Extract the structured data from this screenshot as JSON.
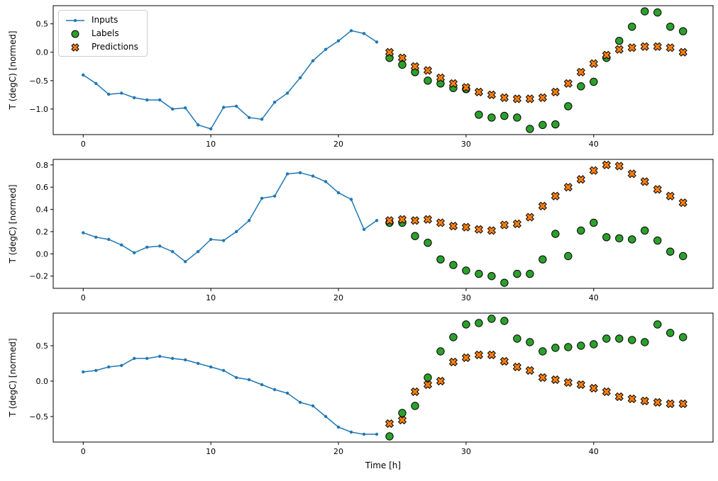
{
  "figure": {
    "xlabel": "Time [h]",
    "ylabel": "T (degC) [normed]",
    "background": "#ffffff",
    "legend": {
      "position": "upper-left",
      "items": [
        {
          "label": "Inputs",
          "marker": "line-dot",
          "color": "#1f77b4",
          "edge_color": "#1f77b4"
        },
        {
          "label": "Labels",
          "marker": "circle",
          "color": "#2ca02c",
          "edge_color": "#000000"
        },
        {
          "label": "Predictions",
          "marker": "x",
          "color": "#ff7f0e",
          "edge_color": "#000000"
        }
      ]
    }
  },
  "chart_data": [
    {
      "type": "line",
      "title": "",
      "xlabel": "",
      "ylabel": "T (degC) [normed]",
      "xlim": [
        -2.35,
        49.35
      ],
      "ylim": [
        -1.45,
        0.82
      ],
      "xticks": [
        0,
        10,
        20,
        30,
        40
      ],
      "yticks": [
        -1.0,
        -0.5,
        0.0,
        0.5
      ],
      "grid": false,
      "series": [
        {
          "name": "Inputs",
          "type": "line",
          "color": "#1f77b4",
          "x": [
            0,
            1,
            2,
            3,
            4,
            5,
            6,
            7,
            8,
            9,
            10,
            11,
            12,
            13,
            14,
            15,
            16,
            17,
            18,
            19,
            20,
            21,
            22,
            23
          ],
          "y": [
            -0.4,
            -0.55,
            -0.74,
            -0.72,
            -0.8,
            -0.84,
            -0.84,
            -1.0,
            -0.98,
            -1.28,
            -1.35,
            -0.97,
            -0.95,
            -1.15,
            -1.18,
            -0.88,
            -0.72,
            -0.45,
            -0.15,
            0.05,
            0.2,
            0.38,
            0.33,
            0.18
          ]
        },
        {
          "name": "Labels",
          "type": "scatter-circle",
          "color": "#2ca02c",
          "edge_color": "#000000",
          "x": [
            24,
            25,
            26,
            27,
            28,
            29,
            30,
            31,
            32,
            33,
            34,
            35,
            36,
            37,
            38,
            39,
            40,
            41,
            42,
            43,
            44,
            45,
            46,
            47
          ],
          "y": [
            -0.1,
            -0.22,
            -0.35,
            -0.5,
            -0.55,
            -0.63,
            -0.65,
            -1.1,
            -1.15,
            -1.12,
            -1.15,
            -1.35,
            -1.28,
            -1.27,
            -0.95,
            -0.6,
            -0.52,
            -0.1,
            0.2,
            0.45,
            0.72,
            0.7,
            0.45,
            0.37
          ]
        },
        {
          "name": "Predictions",
          "type": "scatter-x",
          "color": "#ff7f0e",
          "edge_color": "#000000",
          "x": [
            24,
            25,
            26,
            27,
            28,
            29,
            30,
            31,
            32,
            33,
            34,
            35,
            36,
            37,
            38,
            39,
            40,
            41,
            42,
            43,
            44,
            45,
            46,
            47
          ],
          "y": [
            0.0,
            -0.1,
            -0.25,
            -0.32,
            -0.45,
            -0.55,
            -0.62,
            -0.7,
            -0.75,
            -0.8,
            -0.82,
            -0.82,
            -0.8,
            -0.7,
            -0.55,
            -0.35,
            -0.2,
            -0.05,
            0.05,
            0.08,
            0.1,
            0.1,
            0.08,
            0.0
          ]
        }
      ]
    },
    {
      "type": "line",
      "title": "",
      "xlabel": "",
      "ylabel": "T (degC) [normed]",
      "xlim": [
        -2.35,
        49.35
      ],
      "ylim": [
        -0.31,
        0.85
      ],
      "xticks": [
        0,
        10,
        20,
        30,
        40
      ],
      "yticks": [
        -0.2,
        0.0,
        0.2,
        0.4,
        0.6,
        0.8
      ],
      "grid": false,
      "series": [
        {
          "name": "Inputs",
          "type": "line",
          "color": "#1f77b4",
          "x": [
            0,
            1,
            2,
            3,
            4,
            5,
            6,
            7,
            8,
            9,
            10,
            11,
            12,
            13,
            14,
            15,
            16,
            17,
            18,
            19,
            20,
            21,
            22,
            23
          ],
          "y": [
            0.19,
            0.15,
            0.13,
            0.08,
            0.01,
            0.06,
            0.07,
            0.02,
            -0.07,
            0.02,
            0.13,
            0.12,
            0.2,
            0.3,
            0.5,
            0.52,
            0.72,
            0.73,
            0.7,
            0.65,
            0.55,
            0.49,
            0.22,
            0.3
          ]
        },
        {
          "name": "Labels",
          "type": "scatter-circle",
          "color": "#2ca02c",
          "edge_color": "#000000",
          "x": [
            24,
            25,
            26,
            27,
            28,
            29,
            30,
            31,
            32,
            33,
            34,
            35,
            36,
            37,
            38,
            39,
            40,
            41,
            42,
            43,
            44,
            45,
            46,
            47
          ],
          "y": [
            0.28,
            0.28,
            0.16,
            0.1,
            -0.05,
            -0.1,
            -0.15,
            -0.18,
            -0.2,
            -0.26,
            -0.18,
            -0.18,
            -0.05,
            0.18,
            -0.02,
            0.21,
            0.28,
            0.15,
            0.14,
            0.13,
            0.21,
            0.12,
            0.02,
            -0.02
          ]
        },
        {
          "name": "Predictions",
          "type": "scatter-x",
          "color": "#ff7f0e",
          "edge_color": "#000000",
          "x": [
            24,
            25,
            26,
            27,
            28,
            29,
            30,
            31,
            32,
            33,
            34,
            35,
            36,
            37,
            38,
            39,
            40,
            41,
            42,
            43,
            44,
            45,
            46,
            47
          ],
          "y": [
            0.3,
            0.31,
            0.3,
            0.31,
            0.28,
            0.25,
            0.24,
            0.22,
            0.21,
            0.26,
            0.27,
            0.33,
            0.43,
            0.52,
            0.6,
            0.67,
            0.75,
            0.8,
            0.79,
            0.72,
            0.65,
            0.58,
            0.52,
            0.46
          ]
        }
      ]
    },
    {
      "type": "line",
      "title": "",
      "xlabel": "Time [h]",
      "ylabel": "T (degC) [normed]",
      "xlim": [
        -2.35,
        49.35
      ],
      "ylim": [
        -0.86,
        0.96
      ],
      "xticks": [
        0,
        10,
        20,
        30,
        40
      ],
      "yticks": [
        -0.5,
        0.0,
        0.5
      ],
      "grid": false,
      "series": [
        {
          "name": "Inputs",
          "type": "line",
          "color": "#1f77b4",
          "x": [
            0,
            1,
            2,
            3,
            4,
            5,
            6,
            7,
            8,
            9,
            10,
            11,
            12,
            13,
            14,
            15,
            16,
            17,
            18,
            19,
            20,
            21,
            22,
            23
          ],
          "y": [
            0.13,
            0.15,
            0.2,
            0.22,
            0.32,
            0.32,
            0.35,
            0.32,
            0.3,
            0.25,
            0.2,
            0.15,
            0.05,
            0.02,
            -0.05,
            -0.12,
            -0.17,
            -0.3,
            -0.35,
            -0.5,
            -0.65,
            -0.72,
            -0.75,
            -0.75
          ]
        },
        {
          "name": "Labels",
          "type": "scatter-circle",
          "color": "#2ca02c",
          "edge_color": "#000000",
          "x": [
            24,
            25,
            26,
            27,
            28,
            29,
            30,
            31,
            32,
            33,
            34,
            35,
            36,
            37,
            38,
            39,
            40,
            41,
            42,
            43,
            44,
            45,
            46,
            47
          ],
          "y": [
            -0.78,
            -0.45,
            -0.35,
            0.05,
            0.42,
            0.62,
            0.8,
            0.82,
            0.88,
            0.85,
            0.6,
            0.55,
            0.42,
            0.47,
            0.48,
            0.5,
            0.52,
            0.6,
            0.6,
            0.58,
            0.55,
            0.8,
            0.68,
            0.62
          ]
        },
        {
          "name": "Predictions",
          "type": "scatter-x",
          "color": "#ff7f0e",
          "edge_color": "#000000",
          "x": [
            24,
            25,
            26,
            27,
            28,
            29,
            30,
            31,
            32,
            33,
            34,
            35,
            36,
            37,
            38,
            39,
            40,
            41,
            42,
            43,
            44,
            45,
            46,
            47
          ],
          "y": [
            -0.6,
            -0.55,
            -0.15,
            -0.05,
            0.0,
            0.27,
            0.33,
            0.37,
            0.37,
            0.28,
            0.2,
            0.15,
            0.05,
            0.02,
            -0.02,
            -0.05,
            -0.1,
            -0.15,
            -0.22,
            -0.25,
            -0.28,
            -0.3,
            -0.32,
            -0.32
          ]
        }
      ]
    }
  ]
}
